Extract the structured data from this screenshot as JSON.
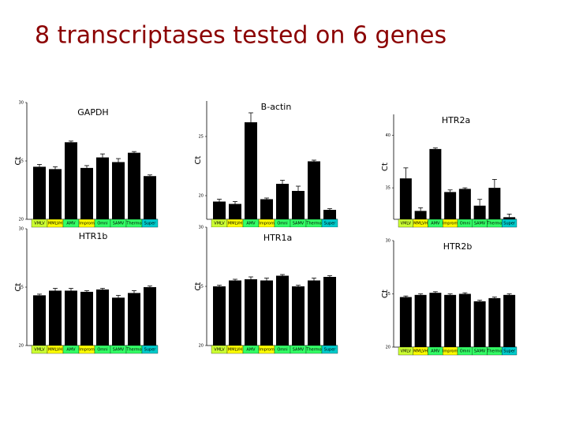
{
  "title": "8 transcriptases tested on 6 genes",
  "chart_data": [
    {
      "type": "bar",
      "title": "GAPDH",
      "y_label": "Ct",
      "categories": [
        "VMLV",
        "MMLVH",
        "AMV",
        "Improm",
        "Omni",
        "SAMV",
        "Thermo",
        "Super"
      ],
      "category_colors": [
        "#ccff33",
        "#ffff00",
        "#33ff66",
        "#ffff00",
        "#33ff66",
        "#33ff66",
        "#33ff66",
        "#00cccc"
      ],
      "values": [
        24.5,
        24.3,
        26.6,
        24.4,
        25.3,
        24.9,
        25.7,
        23.7
      ],
      "errors": [
        0.2,
        0.2,
        0.1,
        0.2,
        0.3,
        0.3,
        0.1,
        0.1
      ],
      "color": "#000000",
      "ylim": [
        20,
        30
      ],
      "yticks": [
        20,
        25,
        30
      ]
    },
    {
      "type": "bar",
      "title": "B-actin",
      "y_label": "Ct",
      "categories": [
        "VMLV",
        "MMLVH",
        "AMV",
        "Improm",
        "Omni",
        "SAMV",
        "Thermo",
        "Super"
      ],
      "category_colors": [
        "#ccff33",
        "#ffff00",
        "#33ff66",
        "#ffff00",
        "#33ff66",
        "#33ff66",
        "#33ff66",
        "#00cccc"
      ],
      "values": [
        19.5,
        19.3,
        26.2,
        19.7,
        21.0,
        20.4,
        22.9,
        18.8
      ],
      "errors": [
        0.2,
        0.2,
        0.8,
        0.1,
        0.3,
        0.4,
        0.1,
        0.1
      ],
      "color": "#000000",
      "ylim": [
        18,
        28
      ],
      "yticks": [
        20,
        25
      ]
    },
    {
      "type": "bar",
      "title": "HTR2a",
      "y_label": "Ct",
      "categories": [
        "VMLV",
        "MMLVH",
        "AMV",
        "Improm",
        "Omni",
        "SAMV",
        "Thermo",
        "Super"
      ],
      "category_colors": [
        "#ccff33",
        "#ffff00",
        "#33ff66",
        "#ffff00",
        "#33ff66",
        "#33ff66",
        "#33ff66",
        "#00cccc"
      ],
      "values": [
        35.9,
        32.8,
        38.7,
        34.6,
        34.9,
        33.3,
        35.0,
        32.2
      ],
      "errors": [
        1.0,
        0.3,
        0.1,
        0.2,
        0.1,
        0.6,
        0.8,
        0.3
      ],
      "color": "#000000",
      "ylim": [
        32,
        42
      ],
      "yticks": [
        35,
        40
      ]
    },
    {
      "type": "bar",
      "title": "HTR1b",
      "y_label": "Ct",
      "categories": [
        "VMLV",
        "MMLVH",
        "AMV",
        "Improm",
        "Omni",
        "SAMV",
        "Thermo",
        "Super"
      ],
      "category_colors": [
        "#ccff33",
        "#ffff00",
        "#33ff66",
        "#ffff00",
        "#33ff66",
        "#33ff66",
        "#33ff66",
        "#00cccc"
      ],
      "values": [
        24.3,
        24.7,
        24.7,
        24.6,
        24.8,
        24.1,
        24.5,
        25.0
      ],
      "errors": [
        0.1,
        0.2,
        0.2,
        0.1,
        0.1,
        0.2,
        0.2,
        0.1
      ],
      "color": "#000000",
      "ylim": [
        20,
        30
      ],
      "yticks": [
        20,
        25,
        30
      ]
    },
    {
      "type": "bar",
      "title": "HTR1a",
      "y_label": "Ct",
      "categories": [
        "VMLV",
        "MMLVH",
        "AMV",
        "Improm",
        "Omni",
        "SAMV",
        "Thermo",
        "Super"
      ],
      "category_colors": [
        "#ccff33",
        "#ffff00",
        "#33ff66",
        "#ffff00",
        "#33ff66",
        "#33ff66",
        "#33ff66",
        "#00cccc"
      ],
      "values": [
        25.0,
        25.5,
        25.6,
        25.5,
        25.9,
        25.0,
        25.5,
        25.8
      ],
      "errors": [
        0.1,
        0.1,
        0.2,
        0.2,
        0.1,
        0.1,
        0.2,
        0.1
      ],
      "color": "#000000",
      "ylim": [
        20,
        30
      ],
      "yticks": [
        20,
        25,
        30
      ]
    },
    {
      "type": "bar",
      "title": "HTR2b",
      "y_label": "Ct",
      "categories": [
        "VMLV",
        "MMLVH",
        "AMV",
        "Improm",
        "Omni",
        "SAMV",
        "Thermo",
        "Super"
      ],
      "category_colors": [
        "#ccff33",
        "#ffff00",
        "#33ff66",
        "#ffff00",
        "#33ff66",
        "#33ff66",
        "#33ff66",
        "#00cccc"
      ],
      "values": [
        24.7,
        24.9,
        25.1,
        24.9,
        25.0,
        24.3,
        24.6,
        24.9
      ],
      "errors": [
        0.1,
        0.1,
        0.1,
        0.1,
        0.1,
        0.1,
        0.1,
        0.1
      ],
      "color": "#000000",
      "ylim": [
        20,
        30
      ],
      "yticks": [
        20,
        25,
        30
      ]
    }
  ]
}
